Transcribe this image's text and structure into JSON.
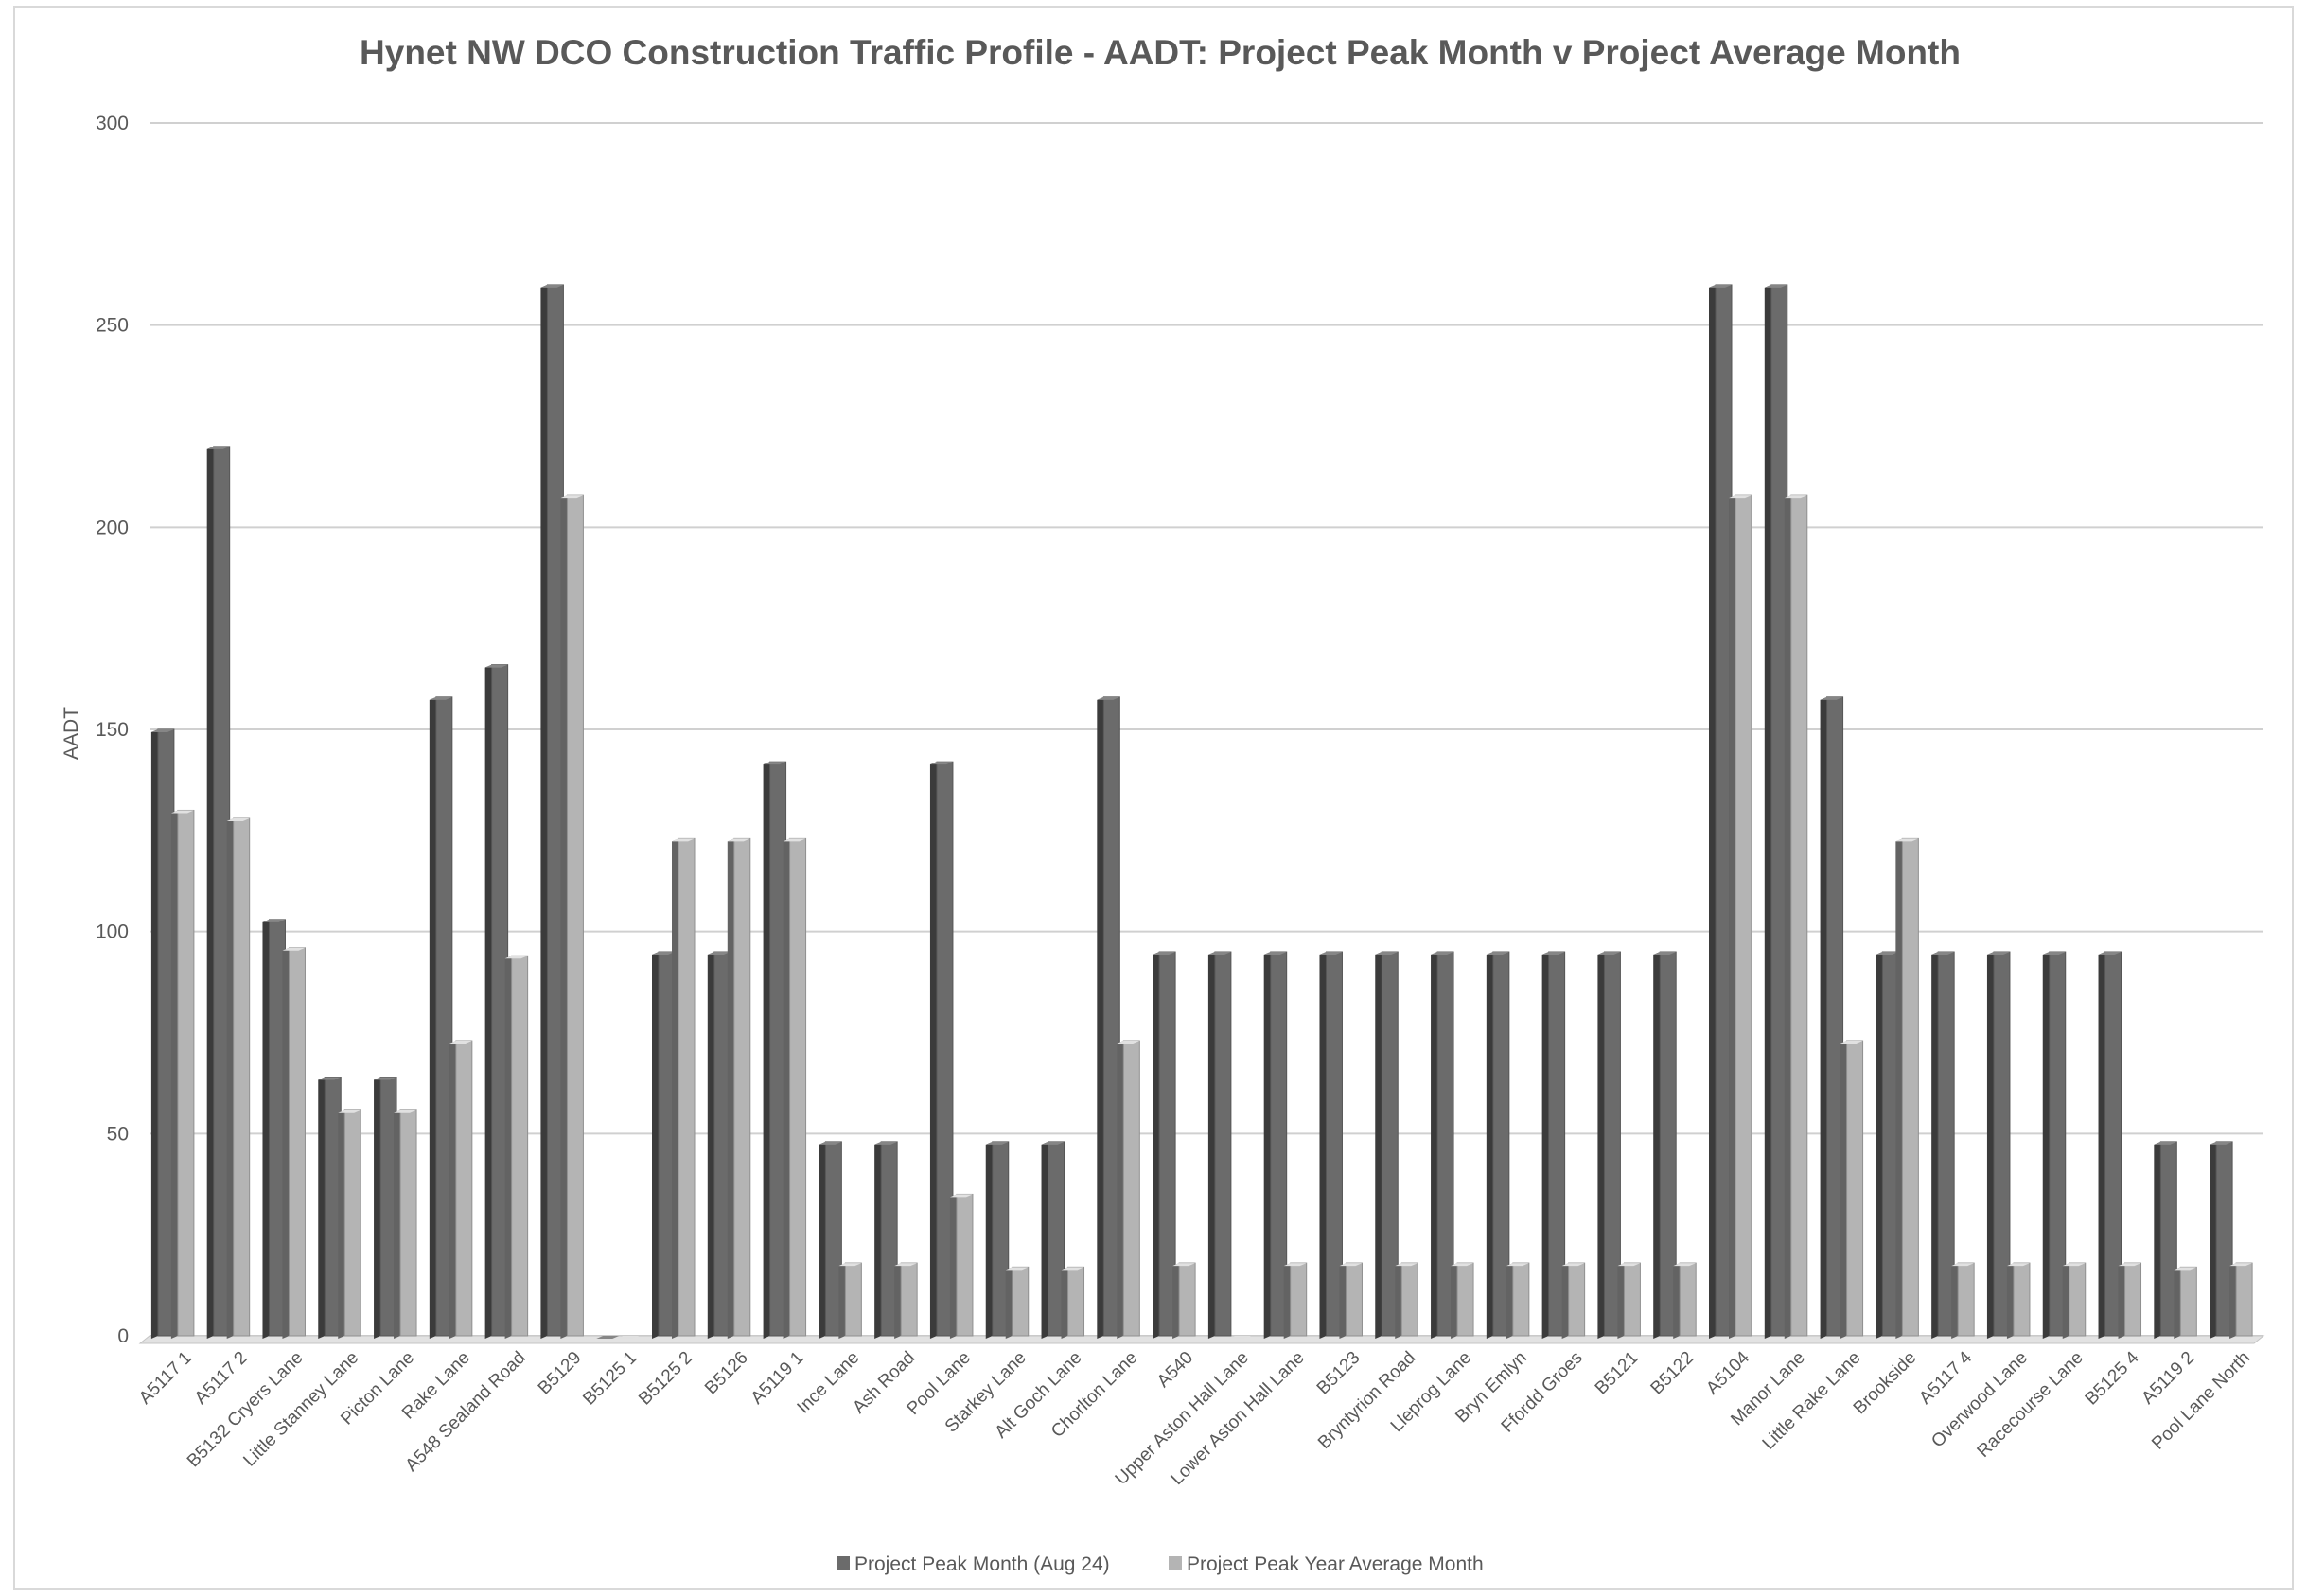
{
  "chart_data": {
    "type": "bar",
    "title": "Hynet NW DCO Construction Traffic Profile - AADT: Project Peak Month v Project Average Month",
    "xlabel": "",
    "ylabel": "AADT",
    "ylim": [
      0,
      300
    ],
    "yticks": [
      0,
      50,
      100,
      150,
      200,
      250,
      300
    ],
    "grid": true,
    "legend_position": "bottom",
    "categories": [
      "A5117 1",
      "A5117 2",
      "B5132 Cryers Lane",
      "Little Stanney Lane",
      "Picton Lane",
      "Rake Lane",
      "A548 Sealand Road",
      "B5129",
      "B5125 1",
      "B5125 2",
      "B5126",
      "A5119 1",
      "Ince Lane",
      "Ash Road",
      "Pool Lane",
      "Starkey Lane",
      "Alt Goch Lane",
      "Chorlton Lane",
      "A540",
      "Upper Aston Hall Lane",
      "Lower Aston Hall Lane",
      "B5123",
      "Bryntyrion Road",
      "Lleprog Lane",
      "Bryn Emlyn",
      "Ffordd Groes",
      "B5121",
      "B5122",
      "A5104",
      "Manor Lane",
      "Little Rake Lane",
      "Brookside",
      "A5117 4",
      "Overwood Lane",
      "Racecourse Lane",
      "B5125 4",
      "A5119 2",
      "Pool Lane North"
    ],
    "series": [
      {
        "name": "Project Peak Month (Aug 24)",
        "color": "#6b6b6b",
        "values": [
          150,
          220,
          103,
          64,
          64,
          158,
          166,
          260,
          0,
          95,
          95,
          142,
          48,
          48,
          142,
          48,
          48,
          158,
          95,
          95,
          95,
          95,
          95,
          95,
          95,
          95,
          95,
          95,
          260,
          260,
          158,
          95,
          95,
          95,
          95,
          95,
          48,
          48
        ]
      },
      {
        "name": "Project Peak Year Average Month",
        "color": "#b4b4b4",
        "values": [
          130,
          128,
          96,
          56,
          56,
          73,
          94,
          208,
          0,
          123,
          123,
          123,
          18,
          18,
          35,
          17,
          17,
          73,
          18,
          0,
          18,
          18,
          18,
          18,
          18,
          18,
          18,
          18,
          208,
          208,
          73,
          123,
          18,
          18,
          18,
          18,
          17,
          18
        ]
      }
    ]
  }
}
